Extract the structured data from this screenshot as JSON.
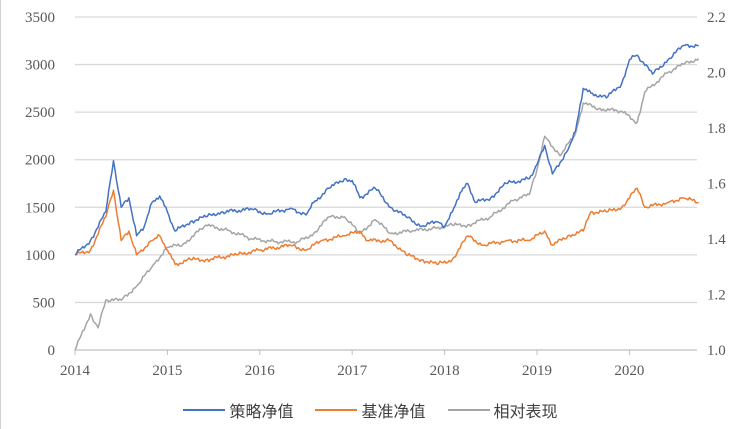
{
  "chart_data": {
    "type": "line",
    "title": "",
    "xlabel": "",
    "ylabel": "",
    "x_ticks": [
      "2014",
      "2015",
      "2016",
      "2017",
      "2018",
      "2019",
      "2020"
    ],
    "xlim": [
      "2014-01",
      "2020-10"
    ],
    "y_left": {
      "lim": [
        0,
        3500
      ],
      "ticks": [
        "0",
        "500",
        "1000",
        "1500",
        "2000",
        "2500",
        "3000",
        "3500"
      ]
    },
    "y_right": {
      "lim": [
        1.0,
        2.2
      ],
      "ticks": [
        "1.0",
        "1.2",
        "1.4",
        "1.6",
        "1.8",
        "2.0",
        "2.2"
      ]
    },
    "grid": "horizontal",
    "legend_position": "bottom",
    "series": [
      {
        "name": "策略净值",
        "axis": "left",
        "color": "#4472C4",
        "points": [
          [
            "2014-01",
            1000
          ],
          [
            "2014-03",
            1150
          ],
          [
            "2014-05",
            1450
          ],
          [
            "2014-06",
            1990
          ],
          [
            "2014-07",
            1500
          ],
          [
            "2014-08",
            1600
          ],
          [
            "2014-09",
            1200
          ],
          [
            "2014-10",
            1300
          ],
          [
            "2014-11",
            1550
          ],
          [
            "2014-12",
            1620
          ],
          [
            "2015-01",
            1450
          ],
          [
            "2015-02",
            1250
          ],
          [
            "2015-04",
            1350
          ],
          [
            "2015-06",
            1400
          ],
          [
            "2015-08",
            1450
          ],
          [
            "2015-12",
            1480
          ],
          [
            "2016-02",
            1430
          ],
          [
            "2016-05",
            1490
          ],
          [
            "2016-07",
            1420
          ],
          [
            "2016-08",
            1550
          ],
          [
            "2016-10",
            1700
          ],
          [
            "2016-12",
            1800
          ],
          [
            "2017-01",
            1780
          ],
          [
            "2017-02",
            1600
          ],
          [
            "2017-04",
            1700
          ],
          [
            "2017-06",
            1500
          ],
          [
            "2017-08",
            1400
          ],
          [
            "2017-10",
            1300
          ],
          [
            "2017-12",
            1350
          ],
          [
            "2018-01",
            1300
          ],
          [
            "2018-02",
            1450
          ],
          [
            "2018-03",
            1650
          ],
          [
            "2018-04",
            1750
          ],
          [
            "2018-05",
            1550
          ],
          [
            "2018-07",
            1600
          ],
          [
            "2018-09",
            1750
          ],
          [
            "2018-12",
            1800
          ],
          [
            "2019-01",
            1950
          ],
          [
            "2019-02",
            2150
          ],
          [
            "2019-03",
            1850
          ],
          [
            "2019-05",
            2100
          ],
          [
            "2019-06",
            2300
          ],
          [
            "2019-07",
            2750
          ],
          [
            "2019-08",
            2700
          ],
          [
            "2019-10",
            2650
          ],
          [
            "2019-12",
            2800
          ],
          [
            "2020-01",
            3050
          ],
          [
            "2020-02",
            3100
          ],
          [
            "2020-04",
            2900
          ],
          [
            "2020-06",
            3050
          ],
          [
            "2020-08",
            3200
          ],
          [
            "2020-10",
            3200
          ]
        ]
      },
      {
        "name": "基准净值",
        "axis": "left",
        "color": "#ED7D31",
        "points": [
          [
            "2014-01",
            1000
          ],
          [
            "2014-03",
            1050
          ],
          [
            "2014-05",
            1400
          ],
          [
            "2014-06",
            1680
          ],
          [
            "2014-07",
            1150
          ],
          [
            "2014-08",
            1250
          ],
          [
            "2014-09",
            1000
          ],
          [
            "2014-11",
            1150
          ],
          [
            "2014-12",
            1200
          ],
          [
            "2015-01",
            1050
          ],
          [
            "2015-02",
            900
          ],
          [
            "2015-04",
            950
          ],
          [
            "2015-06",
            950
          ],
          [
            "2015-10",
            1000
          ],
          [
            "2016-01",
            1050
          ],
          [
            "2016-05",
            1100
          ],
          [
            "2016-07",
            1050
          ],
          [
            "2016-09",
            1150
          ],
          [
            "2016-12",
            1200
          ],
          [
            "2017-02",
            1250
          ],
          [
            "2017-03",
            1150
          ],
          [
            "2017-06",
            1150
          ],
          [
            "2017-08",
            1000
          ],
          [
            "2017-10",
            950
          ],
          [
            "2017-12",
            900
          ],
          [
            "2018-02",
            950
          ],
          [
            "2018-04",
            1200
          ],
          [
            "2018-06",
            1100
          ],
          [
            "2018-09",
            1150
          ],
          [
            "2018-12",
            1150
          ],
          [
            "2019-02",
            1250
          ],
          [
            "2019-03",
            1100
          ],
          [
            "2019-05",
            1200
          ],
          [
            "2019-07",
            1250
          ],
          [
            "2019-08",
            1450
          ],
          [
            "2019-10",
            1450
          ],
          [
            "2019-12",
            1500
          ],
          [
            "2020-02",
            1700
          ],
          [
            "2020-03",
            1500
          ],
          [
            "2020-06",
            1550
          ],
          [
            "2020-08",
            1600
          ],
          [
            "2020-10",
            1550
          ]
        ]
      },
      {
        "name": "相对表现",
        "axis": "right",
        "color": "#A5A5A5",
        "points": [
          [
            "2014-01",
            1.0
          ],
          [
            "2014-03",
            1.13
          ],
          [
            "2014-04",
            1.08
          ],
          [
            "2014-05",
            1.18
          ],
          [
            "2014-07",
            1.18
          ],
          [
            "2014-09",
            1.23
          ],
          [
            "2014-11",
            1.3
          ],
          [
            "2015-01",
            1.37
          ],
          [
            "2015-03",
            1.38
          ],
          [
            "2015-06",
            1.45
          ],
          [
            "2015-09",
            1.43
          ],
          [
            "2015-12",
            1.4
          ],
          [
            "2016-03",
            1.39
          ],
          [
            "2016-06",
            1.39
          ],
          [
            "2016-08",
            1.42
          ],
          [
            "2016-10",
            1.48
          ],
          [
            "2016-12",
            1.48
          ],
          [
            "2017-02",
            1.42
          ],
          [
            "2017-04",
            1.47
          ],
          [
            "2017-06",
            1.42
          ],
          [
            "2017-09",
            1.43
          ],
          [
            "2017-12",
            1.44
          ],
          [
            "2018-02",
            1.45
          ],
          [
            "2018-04",
            1.45
          ],
          [
            "2018-07",
            1.48
          ],
          [
            "2018-10",
            1.54
          ],
          [
            "2018-12",
            1.56
          ],
          [
            "2019-01",
            1.65
          ],
          [
            "2019-02",
            1.77
          ],
          [
            "2019-04",
            1.7
          ],
          [
            "2019-06",
            1.78
          ],
          [
            "2019-07",
            1.89
          ],
          [
            "2019-09",
            1.87
          ],
          [
            "2019-12",
            1.86
          ],
          [
            "2020-02",
            1.82
          ],
          [
            "2020-03",
            1.93
          ],
          [
            "2020-06",
            2.0
          ],
          [
            "2020-08",
            2.03
          ],
          [
            "2020-10",
            2.05
          ]
        ]
      }
    ]
  }
}
